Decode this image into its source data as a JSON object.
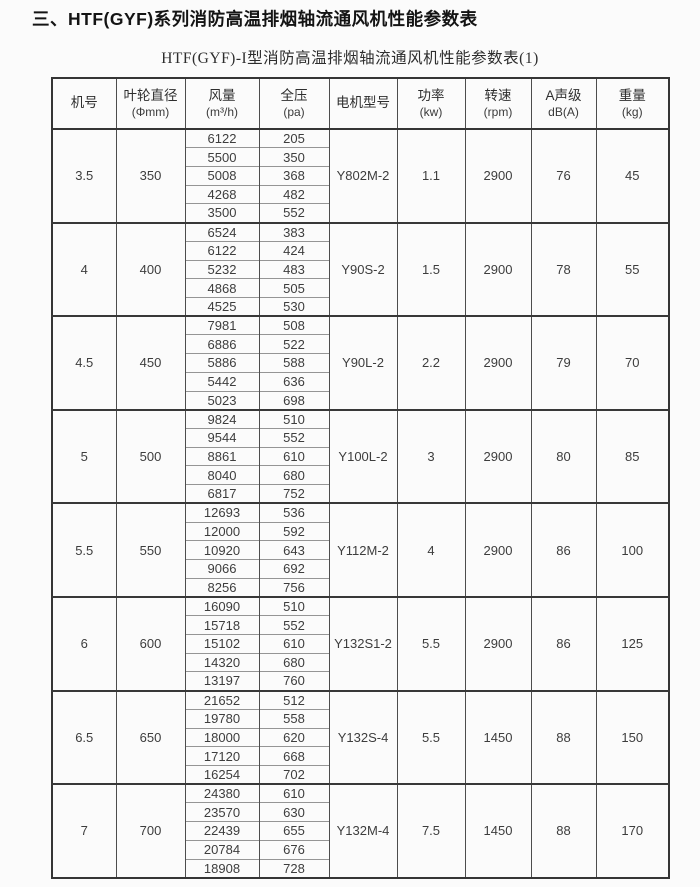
{
  "page": {
    "title": "三、HTF(GYF)系列消防高温排烟轴流通风机性能参数表",
    "subtitle": "HTF(GYF)-I型消防高温排烟轴流通风机性能参数表(1)"
  },
  "table": {
    "columns": [
      {
        "label": "机号",
        "unit": ""
      },
      {
        "label": "叶轮直径",
        "unit": "(Φmm)"
      },
      {
        "label": "风量",
        "unit": "(m³/h)"
      },
      {
        "label": "全压",
        "unit": "(pa)"
      },
      {
        "label": "电机型号",
        "unit": ""
      },
      {
        "label": "功率",
        "unit": "(kw)"
      },
      {
        "label": "转速",
        "unit": "(rpm)"
      },
      {
        "label": "A声级",
        "unit": "dB(A)"
      },
      {
        "label": "重量",
        "unit": "(kg)"
      }
    ],
    "groups": [
      {
        "machine_no": "3.5",
        "impeller_diameter": "350",
        "rows": [
          {
            "flow": "6122",
            "pressure": "205"
          },
          {
            "flow": "5500",
            "pressure": "350"
          },
          {
            "flow": "5008",
            "pressure": "368"
          },
          {
            "flow": "4268",
            "pressure": "482"
          },
          {
            "flow": "3500",
            "pressure": "552"
          }
        ],
        "motor_model": "Y802M-2",
        "power": "1.1",
        "speed": "2900",
        "noise_db": "76",
        "weight": "45"
      },
      {
        "machine_no": "4",
        "impeller_diameter": "400",
        "rows": [
          {
            "flow": "6524",
            "pressure": "383"
          },
          {
            "flow": "6122",
            "pressure": "424"
          },
          {
            "flow": "5232",
            "pressure": "483"
          },
          {
            "flow": "4868",
            "pressure": "505"
          },
          {
            "flow": "4525",
            "pressure": "530"
          }
        ],
        "motor_model": "Y90S-2",
        "power": "1.5",
        "speed": "2900",
        "noise_db": "78",
        "weight": "55"
      },
      {
        "machine_no": "4.5",
        "impeller_diameter": "450",
        "rows": [
          {
            "flow": "7981",
            "pressure": "508"
          },
          {
            "flow": "6886",
            "pressure": "522"
          },
          {
            "flow": "5886",
            "pressure": "588"
          },
          {
            "flow": "5442",
            "pressure": "636"
          },
          {
            "flow": "5023",
            "pressure": "698"
          }
        ],
        "motor_model": "Y90L-2",
        "power": "2.2",
        "speed": "2900",
        "noise_db": "79",
        "weight": "70"
      },
      {
        "machine_no": "5",
        "impeller_diameter": "500",
        "rows": [
          {
            "flow": "9824",
            "pressure": "510"
          },
          {
            "flow": "9544",
            "pressure": "552"
          },
          {
            "flow": "8861",
            "pressure": "610"
          },
          {
            "flow": "8040",
            "pressure": "680"
          },
          {
            "flow": "6817",
            "pressure": "752"
          }
        ],
        "motor_model": "Y100L-2",
        "power": "3",
        "speed": "2900",
        "noise_db": "80",
        "weight": "85"
      },
      {
        "machine_no": "5.5",
        "impeller_diameter": "550",
        "rows": [
          {
            "flow": "12693",
            "pressure": "536"
          },
          {
            "flow": "12000",
            "pressure": "592"
          },
          {
            "flow": "10920",
            "pressure": "643"
          },
          {
            "flow": "9066",
            "pressure": "692"
          },
          {
            "flow": "8256",
            "pressure": "756"
          }
        ],
        "motor_model": "Y112M-2",
        "power": "4",
        "speed": "2900",
        "noise_db": "86",
        "weight": "100"
      },
      {
        "machine_no": "6",
        "impeller_diameter": "600",
        "rows": [
          {
            "flow": "16090",
            "pressure": "510"
          },
          {
            "flow": "15718",
            "pressure": "552"
          },
          {
            "flow": "15102",
            "pressure": "610"
          },
          {
            "flow": "14320",
            "pressure": "680"
          },
          {
            "flow": "13197",
            "pressure": "760"
          }
        ],
        "motor_model": "Y132S1-2",
        "power": "5.5",
        "speed": "2900",
        "noise_db": "86",
        "weight": "125"
      },
      {
        "machine_no": "6.5",
        "impeller_diameter": "650",
        "rows": [
          {
            "flow": "21652",
            "pressure": "512"
          },
          {
            "flow": "19780",
            "pressure": "558"
          },
          {
            "flow": "18000",
            "pressure": "620"
          },
          {
            "flow": "17120",
            "pressure": "668"
          },
          {
            "flow": "16254",
            "pressure": "702"
          }
        ],
        "motor_model": "Y132S-4",
        "power": "5.5",
        "speed": "1450",
        "noise_db": "88",
        "weight": "150"
      },
      {
        "machine_no": "7",
        "impeller_diameter": "700",
        "rows": [
          {
            "flow": "24380",
            "pressure": "610"
          },
          {
            "flow": "23570",
            "pressure": "630"
          },
          {
            "flow": "22439",
            "pressure": "655"
          },
          {
            "flow": "20784",
            "pressure": "676"
          },
          {
            "flow": "18908",
            "pressure": "728"
          }
        ],
        "motor_model": "Y132M-4",
        "power": "7.5",
        "speed": "1450",
        "noise_db": "88",
        "weight": "170"
      }
    ]
  }
}
